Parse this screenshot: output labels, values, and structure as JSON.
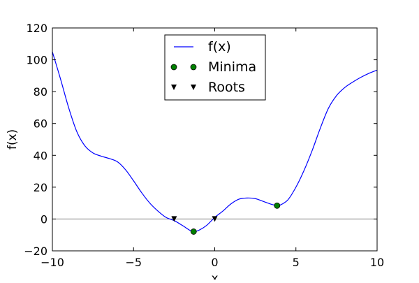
{
  "chart_data": {
    "type": "line",
    "title": "",
    "xlabel": "x",
    "ylabel": "f(x)",
    "xlim": [
      -10,
      10
    ],
    "ylim": [
      -20,
      120
    ],
    "x_ticks": [
      -10,
      -5,
      0,
      5,
      10
    ],
    "x_tick_labels": [
      "−10",
      "−5",
      "0",
      "5",
      "10"
    ],
    "y_ticks": [
      -20,
      0,
      20,
      40,
      60,
      80,
      100,
      120
    ],
    "y_tick_labels": [
      "−20",
      "0",
      "20",
      "40",
      "60",
      "80",
      "100",
      "120"
    ],
    "grid": false,
    "legend_position": "top-center",
    "baseline": {
      "y": 0,
      "color": "#808080"
    },
    "series": [
      {
        "name": "f(x)",
        "kind": "line",
        "color": "#0000ff",
        "x": [
          -10,
          -9.5,
          -9,
          -8.5,
          -8,
          -7.5,
          -7,
          -6.5,
          -6,
          -5.5,
          -5,
          -4.5,
          -4,
          -3.5,
          -3,
          -2.5,
          -2,
          -1.5,
          -1.3,
          -1,
          -0.5,
          0,
          0.5,
          1,
          1.5,
          2,
          2.5,
          3,
          3.5,
          3.84,
          4,
          4.5,
          5,
          5.5,
          6,
          6.5,
          7,
          7.5,
          8,
          8.5,
          9,
          9.5,
          10
        ],
        "y": [
          105,
          88,
          70,
          55,
          46,
          41.5,
          39.5,
          38,
          36,
          31,
          24,
          16.5,
          10,
          5,
          1,
          -1,
          -4,
          -7.3,
          -7.9,
          -7.2,
          -4,
          1,
          5,
          9.5,
          12.5,
          13.2,
          12.8,
          11,
          9.2,
          8.4,
          8.6,
          12,
          20,
          30.5,
          43,
          57,
          69.5,
          77.5,
          82.5,
          86,
          89,
          91.5,
          93.5
        ]
      },
      {
        "name": "Minima",
        "kind": "marker",
        "marker": "circle",
        "color": "#008000",
        "x": [
          -1.3,
          3.84
        ],
        "y": [
          -7.9,
          8.4
        ]
      },
      {
        "name": "Roots",
        "kind": "marker",
        "marker": "triangle-down",
        "color": "#000000",
        "x": [
          -2.5,
          0.0
        ],
        "y": [
          0,
          0
        ]
      }
    ]
  }
}
